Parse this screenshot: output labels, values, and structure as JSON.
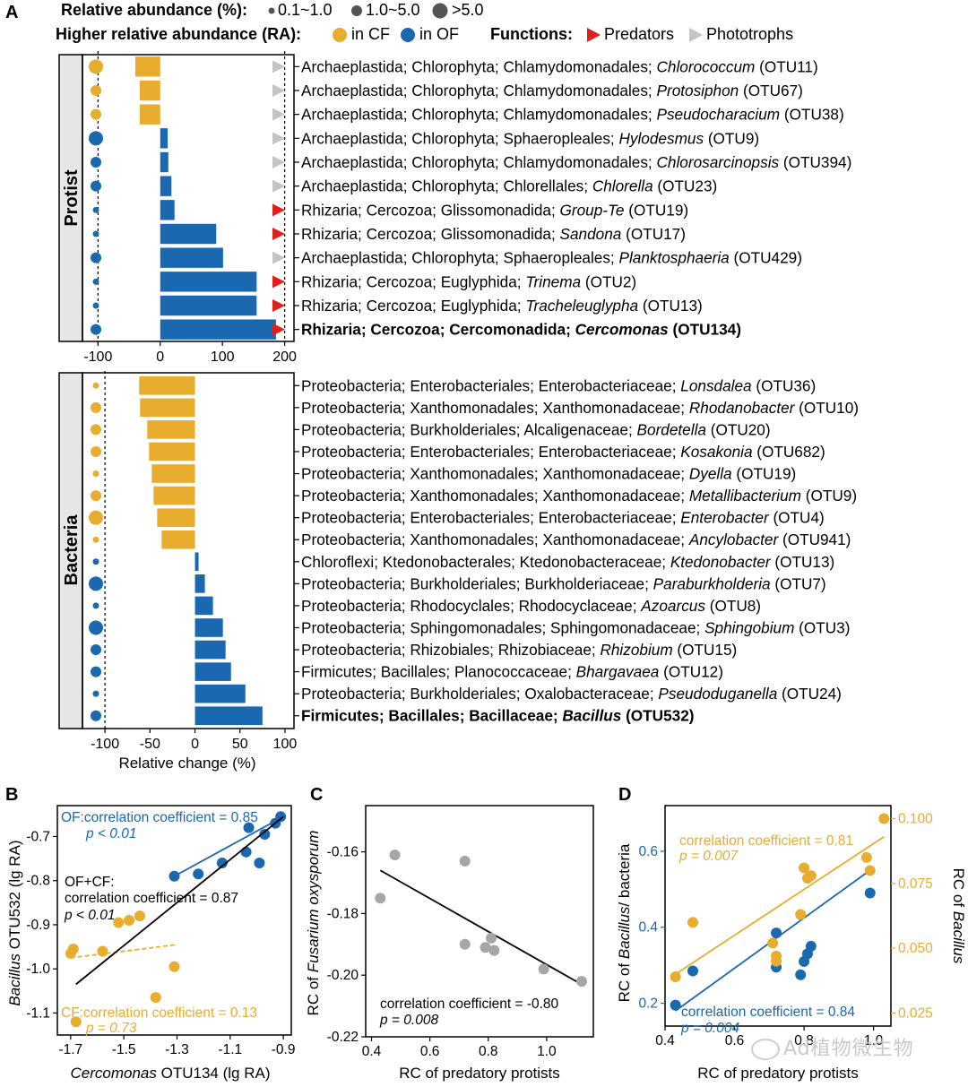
{
  "panels": {
    "A": "A",
    "B": "B",
    "C": "C",
    "D": "D"
  },
  "legend": {
    "abundance_title": "Relative abundance (%):",
    "abundance_levels": [
      "0.1~1.0",
      "1.0~5.0",
      ">5.0"
    ],
    "ra_title": "Higher relative abundance (RA):",
    "ra_cf": "in CF",
    "ra_of": "in OF",
    "functions_title": "Functions:",
    "predators": "Predators",
    "phototrophs": "Phototrophs"
  },
  "colors": {
    "cf": "#e8ac2e",
    "of": "#1a68b0",
    "predator": "#e0201d",
    "phototroph": "#c4c4c4",
    "fit_all": "#000000",
    "gray_point": "#a6a6a6"
  },
  "chart_data": [
    {
      "type": "bar",
      "panel": "A-protist",
      "group_label": "Protist",
      "xlim": [
        -125,
        215
      ],
      "xticks": [
        -100,
        0,
        100,
        200
      ],
      "threshold_lines": [
        -100,
        200
      ],
      "categories": [
        {
          "text": "Archaeplastida; Chlorophyta; Chlamydomonadales; ",
          "genus": "Chlorococcum",
          "otu": " (OTU11)",
          "value": -40,
          "size": 3,
          "ra": "CF",
          "function": "phototroph",
          "bold": false
        },
        {
          "text": "Archaeplastida; Chlorophyta; Chlamydomonadales; ",
          "genus": "Protosiphon",
          "otu": " (OTU67)",
          "value": -33,
          "size": 2,
          "ra": "CF",
          "function": "phototroph",
          "bold": false
        },
        {
          "text": "Archaeplastida; Chlorophyta; Chlamydomonadales; ",
          "genus": "Pseudocharacium",
          "otu": " (OTU38)",
          "value": -33,
          "size": 2,
          "ra": "CF",
          "function": "phototroph",
          "bold": false
        },
        {
          "text": "Archaeplastida; Chlorophyta; Sphaeropleales; ",
          "genus": "Hylodesmus",
          "otu": " (OTU9)",
          "value": 12,
          "size": 3,
          "ra": "OF",
          "function": "phototroph",
          "bold": false
        },
        {
          "text": "Archaeplastida; Chlorophyta; Chlamydomonadales; ",
          "genus": "Chlorosarcinopsis",
          "otu": " (OTU394)",
          "value": 13,
          "size": 2,
          "ra": "OF",
          "function": "phototroph",
          "bold": false
        },
        {
          "text": "Archaeplastida; Chlorophyta; Chlorellales; ",
          "genus": "Chlorella",
          "otu": " (OTU23)",
          "value": 18,
          "size": 2,
          "ra": "OF",
          "function": "phototroph",
          "bold": false
        },
        {
          "text": "Rhizaria; Cercozoa; Glissomonadida; ",
          "genus": "Group-Te",
          "otu": " (OTU19)",
          "value": 23,
          "size": 1,
          "ra": "OF",
          "function": "predator",
          "bold": false
        },
        {
          "text": "Rhizaria; Cercozoa; Glissomonadida; ",
          "genus": "Sandona",
          "otu": " (OTU17)",
          "value": 90,
          "size": 1,
          "ra": "OF",
          "function": "predator",
          "bold": false
        },
        {
          "text": "Archaeplastida; Chlorophyta; Sphaeropleales; ",
          "genus": "Planktosphaeria",
          "otu": " (OTU429)",
          "value": 101,
          "size": 2,
          "ra": "OF",
          "function": "phototroph",
          "bold": false
        },
        {
          "text": "Rhizaria; Cercozoa; Euglyphida; ",
          "genus": "Trinema",
          "otu": " (OTU2)",
          "value": 155,
          "size": 1,
          "ra": "OF",
          "function": "predator",
          "bold": false
        },
        {
          "text": "Rhizaria; Cercozoa; Euglyphida; ",
          "genus": "Tracheleuglypha",
          "otu": " (OTU13)",
          "value": 155,
          "size": 1,
          "ra": "OF",
          "function": "predator",
          "bold": false
        },
        {
          "text": "Rhizaria; Cercozoa; Cercomonadida; ",
          "genus": "Cercomonas",
          "otu": " (OTU134)",
          "value": 186,
          "size": 2,
          "ra": "OF",
          "function": "predator",
          "bold": true
        }
      ]
    },
    {
      "type": "bar",
      "panel": "A-bacteria",
      "group_label": "Bacteria",
      "xlabel": "Relative change (%)",
      "xlim": [
        -125,
        110
      ],
      "xticks": [
        -100,
        -50,
        0,
        50,
        100
      ],
      "threshold_lines": [
        -100
      ],
      "categories": [
        {
          "text": "Proteobacteria; Enterobacteriales; Enterobacteriaceae; ",
          "genus": "Lonsdalea",
          "otu": " (OTU36)",
          "value": -62,
          "size": 1,
          "ra": "CF",
          "bold": false
        },
        {
          "text": "Proteobacteria; Xanthomonadales; Xanthomonadaceae; ",
          "genus": "Rhodanobacter",
          "otu": " (OTU10)",
          "value": -61,
          "size": 2,
          "ra": "CF",
          "bold": false
        },
        {
          "text": "Proteobacteria; Burkholderiales; Alcaligenaceae; ",
          "genus": "Bordetella",
          "otu": " (OTU20)",
          "value": -53,
          "size": 2,
          "ra": "CF",
          "bold": false
        },
        {
          "text": "Proteobacteria; Enterobacteriales; Enterobacteriaceae; ",
          "genus": "Kosakonia",
          "otu": " (OTU682)",
          "value": -51,
          "size": 2,
          "ra": "CF",
          "bold": false
        },
        {
          "text": "Proteobacteria; Xanthomonadales; Xanthomonadaceae; ",
          "genus": "Dyella",
          "otu": " (OTU19)",
          "value": -48,
          "size": 1,
          "ra": "CF",
          "bold": false
        },
        {
          "text": "Proteobacteria; Xanthomonadales; Xanthomonadaceae; ",
          "genus": "Metallibacterium",
          "otu": " (OTU9)",
          "value": -46,
          "size": 2,
          "ra": "CF",
          "bold": false
        },
        {
          "text": "Proteobacteria; Enterobacteriales; Enterobacteriaceae; ",
          "genus": "Enterobacter",
          "otu": " (OTU4)",
          "value": -42,
          "size": 3,
          "ra": "CF",
          "bold": false
        },
        {
          "text": "Proteobacteria; Xanthomonadales; Xanthomonadaceae; ",
          "genus": "Ancylobacter",
          "otu": " (OTU941)",
          "value": -37,
          "size": 1,
          "ra": "CF",
          "bold": false
        },
        {
          "text": "Chloroflexi; Ktedonobacterales; Ktedonobacteraceae; ",
          "genus": "Ktedonobacter",
          "otu": " (OTU13)",
          "value": 4,
          "size": 1,
          "ra": "OF",
          "bold": false
        },
        {
          "text": "Proteobacteria; Burkholderiales; Burkholderiaceae; ",
          "genus": "Paraburkholderia",
          "otu": " (OTU7)",
          "value": 11,
          "size": 3,
          "ra": "OF",
          "bold": false
        },
        {
          "text": "Proteobacteria; Rhodocyclales; Rhodocyclaceae; ",
          "genus": "Azoarcus",
          "otu": " (OTU8)",
          "value": 20,
          "size": 1,
          "ra": "OF",
          "bold": false
        },
        {
          "text": "Proteobacteria; Sphingomonadales; Sphingomonadaceae; ",
          "genus": "Sphingobium",
          "otu": " (OTU3)",
          "value": 31,
          "size": 3,
          "ra": "OF",
          "bold": false
        },
        {
          "text": "Proteobacteria; Rhizobiales; Rhizobiaceae; ",
          "genus": "Rhizobium",
          "otu": " (OTU15)",
          "value": 34,
          "size": 2,
          "ra": "OF",
          "bold": false
        },
        {
          "text": "Firmicutes; Bacillales; Planococcaceae; ",
          "genus": "Bhargavaea",
          "otu": " (OTU12)",
          "value": 40,
          "size": 2,
          "ra": "OF",
          "bold": false
        },
        {
          "text": "Proteobacteria; Burkholderiales; Oxalobacteraceae; ",
          "genus": "Pseudoduganella",
          "otu": " (OTU24)",
          "value": 56,
          "size": 1,
          "ra": "OF",
          "bold": false
        },
        {
          "text": "Firmicutes; Bacillales; Bacillaceae; ",
          "genus": "Bacillus",
          "otu": " (OTU532)",
          "value": 75,
          "size": 2,
          "ra": "OF",
          "bold": true
        }
      ]
    },
    {
      "type": "scatter",
      "panel": "B",
      "xlabel_italic": "Cercomonas",
      "xlabel_rest": " OTU134 (lg RA)",
      "ylabel_italic": "Bacillus",
      "ylabel_rest": " OTU532 (lg RA)",
      "xlim": [
        -1.75,
        -0.87
      ],
      "ylim": [
        -1.15,
        -0.63
      ],
      "xticks": [
        -1.7,
        -1.5,
        -1.3,
        -1.1,
        -0.9
      ],
      "xtick_labels": [
        "-1.7",
        "-1.5",
        "-1.3",
        "-1.1",
        "-0.9"
      ],
      "yticks": [
        -1.1,
        -1.0,
        -0.9,
        -0.8,
        -0.7
      ],
      "ytick_labels": [
        "-1.1",
        "-1.0",
        "-0.9",
        "-0.8",
        "-0.7"
      ],
      "series": [
        {
          "name": "OF",
          "color": "#1a68b0",
          "x": [
            -1.31,
            -1.22,
            -1.13,
            -1.04,
            -1.03,
            -0.99,
            -0.97,
            -0.93,
            -0.91
          ],
          "y": [
            -0.79,
            -0.785,
            -0.76,
            -0.735,
            -0.68,
            -0.76,
            -0.695,
            -0.67,
            -0.655
          ],
          "fit": [
            [
              -1.31,
              -0.79
            ],
            [
              -0.9,
              -0.655
            ]
          ]
        },
        {
          "name": "CF",
          "color": "#e8ac2e",
          "x": [
            -1.7,
            -1.69,
            -1.58,
            -1.52,
            -1.48,
            -1.44,
            -1.38,
            -1.31,
            -1.68
          ],
          "y": [
            -0.965,
            -0.955,
            -0.96,
            -0.895,
            -0.89,
            -0.88,
            -1.065,
            -0.995,
            -1.12
          ],
          "fit": [
            [
              -1.7,
              -0.975
            ],
            [
              -1.3,
              -0.945
            ]
          ],
          "dashed": true
        },
        {
          "name": "all",
          "color": "#000000",
          "fit": [
            [
              -1.68,
              -1.035
            ],
            [
              -0.9,
              -0.655
            ]
          ]
        }
      ],
      "annotations": {
        "of_r": "OF:correlation coefficient = 0.85",
        "of_p": "p < 0.01",
        "all_title": "OF+CF:",
        "all_r": "correlation coefficient = 0.87",
        "all_p": "p < 0.01",
        "cf_r": "CF:correlation coefficient = 0.13",
        "cf_p": "p = 0.73"
      }
    },
    {
      "type": "scatter",
      "panel": "C",
      "xlabel": "RC of predatory protists",
      "ylabel_pre": "RC of ",
      "ylabel_italic": "Fusarium oxysporum",
      "xlim": [
        0.38,
        1.16
      ],
      "ylim": [
        -0.22,
        -0.145
      ],
      "xticks": [
        0.4,
        0.6,
        0.8,
        1.0
      ],
      "xtick_labels": [
        "0.4",
        "0.6",
        "0.8",
        "1.0"
      ],
      "yticks": [
        -0.22,
        -0.2,
        -0.18,
        -0.16
      ],
      "ytick_labels": [
        "-0.22",
        "-0.20",
        "-0.18",
        "-0.16"
      ],
      "series": [
        {
          "name": "samples",
          "color": "#a6a6a6",
          "x": [
            0.43,
            0.48,
            0.72,
            0.72,
            0.79,
            0.81,
            0.82,
            0.99,
            1.12
          ],
          "y": [
            -0.175,
            -0.161,
            -0.163,
            -0.19,
            -0.191,
            -0.188,
            -0.192,
            -0.198,
            -0.202
          ],
          "fit": [
            [
              0.43,
              -0.166
            ],
            [
              1.12,
              -0.203
            ]
          ]
        }
      ],
      "annotations": {
        "r": "correlation coefficient = -0.80",
        "p": "p = 0.008"
      }
    },
    {
      "type": "scatter",
      "panel": "D",
      "xlabel": "RC of predatory protists",
      "ylabel_left_pre": "RC of ",
      "ylabel_left_italic": "Bacillus",
      "ylabel_left_post": "/ bacteria",
      "ylabel_right_pre": "RC of ",
      "ylabel_right_italic": "Bacillus",
      "xlim": [
        0.4,
        1.05
      ],
      "ylim_left": [
        0.14,
        0.72
      ],
      "ylim_right": [
        0.02,
        0.105
      ],
      "xticks": [
        0.4,
        0.6,
        0.8,
        1.0
      ],
      "xtick_labels": [
        "0.4",
        "0.6",
        "0.8",
        "1.0"
      ],
      "yticks_left": [
        0.2,
        0.4,
        0.6
      ],
      "ytick_left_labels": [
        "0.2",
        "0.4",
        "0.6"
      ],
      "yticks_right": [
        0.025,
        0.05,
        0.075,
        0.1
      ],
      "ytick_right_labels": [
        "0.025",
        "0.050",
        "0.075",
        "0.100"
      ],
      "series": [
        {
          "name": "left",
          "axis": "left",
          "color": "#1a68b0",
          "x": [
            0.43,
            0.48,
            0.72,
            0.72,
            0.79,
            0.8,
            0.81,
            0.82,
            0.99
          ],
          "y": [
            0.195,
            0.285,
            0.385,
            0.295,
            0.275,
            0.31,
            0.33,
            0.35,
            0.49
          ],
          "fit": [
            [
              0.43,
              0.18
            ],
            [
              0.99,
              0.55
            ]
          ]
        },
        {
          "name": "right",
          "axis": "right",
          "color": "#e8ac2e",
          "x": [
            0.43,
            0.48,
            0.71,
            0.72,
            0.72,
            0.79,
            0.8,
            0.81,
            0.82,
            0.98,
            0.99,
            1.03
          ],
          "y": [
            0.039,
            0.06,
            0.052,
            0.047,
            0.045,
            0.063,
            0.081,
            0.077,
            0.078,
            0.085,
            0.08,
            0.1
          ],
          "fit": [
            [
              0.43,
              0.04
            ],
            [
              1.03,
              0.093
            ]
          ]
        }
      ],
      "annotations": {
        "r_right": "correlation coefficient = 0.81",
        "p_right": "p = 0.007",
        "r_left": "correlation coefficient = 0.84",
        "p_left": "p = 0.004"
      }
    }
  ],
  "watermark": "Ad植物微生物"
}
